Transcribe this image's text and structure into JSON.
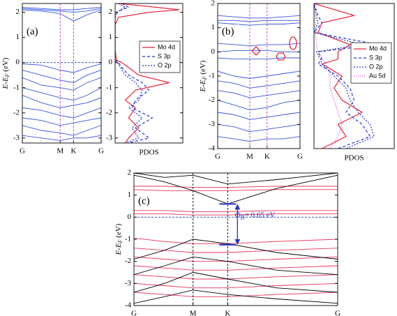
{
  "chart_data": [
    {
      "type": "band",
      "label": "(a)",
      "ylabel": {
        "main": "E-E",
        "sub": "F",
        "unit": " (eV)"
      },
      "ylim": [
        -3.2,
        2.35
      ],
      "yticks": [
        2,
        1,
        0,
        -1,
        -2,
        -3
      ],
      "xlim": [
        0,
        1
      ],
      "xticks": [
        {
          "value": 0,
          "label": "G"
        },
        {
          "value": 0.48,
          "label": "M"
        },
        {
          "value": 0.65,
          "label": "K"
        },
        {
          "value": 1,
          "label": "G"
        }
      ],
      "kpath_lines": true,
      "kpath_color": "#cc33cc",
      "fermi_level": 0,
      "fermi_color": "#3355dd",
      "x": [
        0,
        0.24,
        0.48,
        0.65,
        0.82,
        1
      ],
      "band_sets": [
        {
          "color": "#3355dd",
          "bands": [
            [
              2.2,
              2.15,
              2.1,
              2.1,
              2.15,
              2.2
            ],
            [
              2.1,
              2.05,
              1.95,
              1.65,
              1.9,
              2.1
            ],
            [
              2.15,
              2.1,
              2.05,
              2.0,
              2.05,
              2.15
            ],
            [
              -0.05,
              -0.1,
              -0.3,
              -0.4,
              -0.2,
              -0.05
            ],
            [
              -0.3,
              -0.5,
              -0.7,
              -0.8,
              -0.5,
              -0.3
            ],
            [
              -0.6,
              -0.9,
              -1.0,
              -1.1,
              -0.8,
              -0.6
            ],
            [
              -1.0,
              -1.2,
              -1.4,
              -1.5,
              -1.3,
              -1.0
            ],
            [
              -1.3,
              -1.6,
              -1.8,
              -1.7,
              -1.6,
              -1.4
            ],
            [
              -1.8,
              -1.9,
              -2.1,
              -2.2,
              -2.0,
              -1.8
            ],
            [
              -2.2,
              -2.3,
              -2.5,
              -2.4,
              -2.3,
              -2.2
            ],
            [
              -2.5,
              -2.7,
              -2.8,
              -2.9,
              -2.7,
              -2.5
            ],
            [
              -2.9,
              -3.0,
              -3.1,
              -3.0,
              -3.0,
              -2.9
            ]
          ]
        }
      ]
    },
    {
      "type": "pdos",
      "xlabel": "PDOS",
      "xlim": [
        0,
        1
      ],
      "ylim": [
        -3.2,
        2.35
      ],
      "yticks": [
        2,
        1,
        0,
        -1,
        -2,
        -3
      ],
      "legend": "right",
      "energies": [
        2.35,
        2.2,
        2.1,
        2.0,
        1.8,
        1.5,
        0.5,
        0.1,
        0,
        -0.2,
        -0.5,
        -0.8,
        -1.1,
        -1.5,
        -1.8,
        -2.2,
        -2.6,
        -3.0,
        -3.2
      ],
      "series": [
        {
          "name": "Mo 4d",
          "color": "#e8233a",
          "dash": "none",
          "values": [
            0.05,
            0.6,
            0.95,
            0.5,
            0.05,
            0,
            0,
            0.02,
            0.1,
            0.2,
            0.35,
            0.8,
            0.3,
            0.15,
            0.3,
            0.2,
            0.35,
            0.2,
            0.15
          ]
        },
        {
          "name": "S 3p",
          "color": "#2233cc",
          "dash": "4,3",
          "values": [
            0.1,
            0.2,
            0.1,
            0.03,
            0,
            0,
            0,
            0,
            0.05,
            0.1,
            0.2,
            0.4,
            0.5,
            0.3,
            0.25,
            0.55,
            0.3,
            0.5,
            0.2
          ]
        },
        {
          "name": "O 2p",
          "color": "#2233cc",
          "dash": "2,2",
          "values": [
            0.05,
            0.15,
            0.08,
            0.02,
            0,
            0,
            0,
            0,
            0.03,
            0.08,
            0.15,
            0.3,
            0.4,
            0.35,
            0.2,
            0.4,
            0.25,
            0.35,
            0.15
          ]
        }
      ]
    },
    {
      "type": "band",
      "label": "(b)",
      "ylabel": {
        "main": "E-E",
        "sub": "F",
        "unit": " (eV)"
      },
      "ylim": [
        -4,
        2
      ],
      "yticks": [
        2,
        1,
        0,
        -1,
        -2,
        -3,
        -4
      ],
      "xlim": [
        0,
        1
      ],
      "xticks": [
        {
          "value": 0,
          "label": "G"
        },
        {
          "value": 0.39,
          "label": "M"
        },
        {
          "value": 0.6,
          "label": "K"
        },
        {
          "value": 1,
          "label": "G"
        }
      ],
      "kpath_lines": true,
      "kpath_color": "#cc33cc",
      "x": [
        0,
        0.2,
        0.39,
        0.6,
        0.8,
        1
      ],
      "band_sets": [
        {
          "color": "#3355dd",
          "bands": [
            [
              1.5,
              1.45,
              1.4,
              1.4,
              1.45,
              1.5
            ],
            [
              1.3,
              1.3,
              1.25,
              1.3,
              1.3,
              1.3
            ],
            [
              1.2,
              1.15,
              1.1,
              1.15,
              1.15,
              1.2
            ],
            [
              0.35,
              0.3,
              0.25,
              0.3,
              0.3,
              0.35
            ],
            [
              0.0,
              0.05,
              0.05,
              0.05,
              0.0,
              0.0
            ],
            [
              -0.25,
              -0.3,
              -0.3,
              -0.3,
              -0.25,
              -0.25
            ],
            [
              -0.8,
              -1.0,
              -1.1,
              -1.0,
              -0.9,
              -0.8
            ],
            [
              -1.2,
              -1.3,
              -1.5,
              -1.4,
              -1.3,
              -1.2
            ],
            [
              -1.6,
              -1.7,
              -1.9,
              -1.8,
              -1.7,
              -1.6
            ],
            [
              -2.0,
              -2.2,
              -2.4,
              -2.3,
              -2.1,
              -2.0
            ],
            [
              -2.5,
              -2.6,
              -2.8,
              -2.7,
              -2.6,
              -2.5
            ],
            [
              -3.0,
              -3.1,
              -3.3,
              -3.2,
              -3.1,
              -3.0
            ],
            [
              -3.5,
              -3.6,
              -3.7,
              -3.6,
              -3.6,
              -3.5
            ]
          ]
        }
      ]
    },
    {
      "type": "pdos",
      "xlabel": "PDOS",
      "xlim": [
        0,
        1
      ],
      "ylim": [
        -4,
        2
      ],
      "legend": "right",
      "energies": [
        2,
        1.5,
        1.2,
        0.8,
        0.3,
        0,
        -0.3,
        -0.5,
        -1,
        -1.5,
        -2,
        -2.5,
        -3,
        -3.5,
        -4
      ],
      "series": [
        {
          "name": "Mo 4d",
          "color": "#e8233a",
          "dash": "none",
          "values": [
            0,
            0.5,
            0.1,
            0.05,
            0.45,
            0.3,
            0.3,
            0.1,
            0.35,
            0.25,
            0.35,
            0.6,
            0.3,
            0.4,
            0.1
          ]
        },
        {
          "name": "S 3p",
          "color": "#2233cc",
          "dash": "4,3",
          "values": [
            0,
            0.05,
            0.1,
            0,
            0.8,
            0.05,
            0.1,
            0.05,
            0.3,
            0.45,
            0.5,
            0.4,
            0.6,
            0.7,
            0.3
          ]
        },
        {
          "name": "O 2p",
          "color": "#2233cc",
          "dash": "2,2",
          "values": [
            0,
            0.03,
            0.05,
            0,
            0.6,
            0.03,
            0.08,
            0.1,
            0.25,
            0.4,
            0.45,
            0.55,
            0.7,
            0.75,
            0.4
          ]
        },
        {
          "name": "Au 5d",
          "color": "#cc33cc",
          "dash": "1,2",
          "values": [
            0,
            0.02,
            0.02,
            0.02,
            0.03,
            0.05,
            0.1,
            0.15,
            0.2,
            0.2,
            0.25,
            0.3,
            0.35,
            0.3,
            0.2
          ]
        }
      ]
    },
    {
      "type": "band",
      "label": "(c)",
      "ylabel": {
        "main": "E-E",
        "sub": "F",
        "unit": " (eV)"
      },
      "ylim": [
        -4,
        2
      ],
      "yticks": [
        2,
        1,
        0,
        -1,
        -2,
        -3,
        -4
      ],
      "xlim": [
        0,
        1
      ],
      "xticks": [
        {
          "value": 0,
          "label": "G"
        },
        {
          "value": 0.29,
          "label": "M"
        },
        {
          "value": 0.46,
          "label": "K"
        },
        {
          "value": 1,
          "label": "G"
        }
      ],
      "kpath_lines": true,
      "kpath_color": "#000000",
      "fermi_level": 0,
      "fermi_color": "#3355dd",
      "x": [
        0,
        0.15,
        0.29,
        0.46,
        0.7,
        1
      ],
      "band_sets": [
        {
          "color": "#e8335a",
          "bands": [
            [
              1.4,
              1.4,
              1.35,
              1.35,
              1.4,
              1.4
            ],
            [
              1.25,
              1.2,
              1.2,
              1.2,
              1.25,
              1.25
            ],
            [
              0.3,
              0.3,
              0.25,
              0.25,
              0.3,
              0.3
            ],
            [
              0.15,
              0.15,
              0.1,
              0.1,
              0.15,
              0.15
            ],
            [
              -0.95,
              -1.1,
              -1.2,
              -1.2,
              -1.1,
              -1.0
            ],
            [
              -1.4,
              -1.5,
              -1.6,
              -1.6,
              -1.5,
              -1.4
            ],
            [
              -1.8,
              -1.9,
              -2.0,
              -2.0,
              -1.9,
              -1.8
            ],
            [
              -2.2,
              -2.3,
              -2.4,
              -2.4,
              -2.3,
              -2.2
            ],
            [
              -2.6,
              -2.7,
              -2.8,
              -2.8,
              -2.7,
              -2.6
            ],
            [
              -3.0,
              -3.1,
              -3.2,
              -3.2,
              -3.1,
              -3.0
            ],
            [
              -3.4,
              -3.5,
              -3.6,
              -3.6,
              -3.5,
              -3.4
            ]
          ]
        },
        {
          "color": "#000000",
          "bands": [
            [
              1.9,
              1.6,
              1.2,
              0.6,
              1.3,
              1.9
            ],
            [
              2.0,
              1.8,
              1.9,
              1.5,
              1.7,
              2.0
            ],
            [
              -1.9,
              -1.5,
              -1.0,
              -1.2,
              -1.6,
              -1.9
            ],
            [
              -2.6,
              -2.2,
              -1.8,
              -2.0,
              -2.4,
              -2.6
            ],
            [
              -3.4,
              -3.0,
              -2.5,
              -2.8,
              -3.2,
              -3.4
            ],
            [
              -3.9,
              -3.6,
              -3.3,
              -3.5,
              -3.7,
              -3.9
            ]
          ]
        }
      ],
      "gap": {
        "tick": 2,
        "top": 0.6,
        "bottom": -1.25,
        "color": "#2233cc",
        "symbol": "Φ",
        "sub": "B",
        "text": "= 0.65 eV"
      }
    }
  ]
}
